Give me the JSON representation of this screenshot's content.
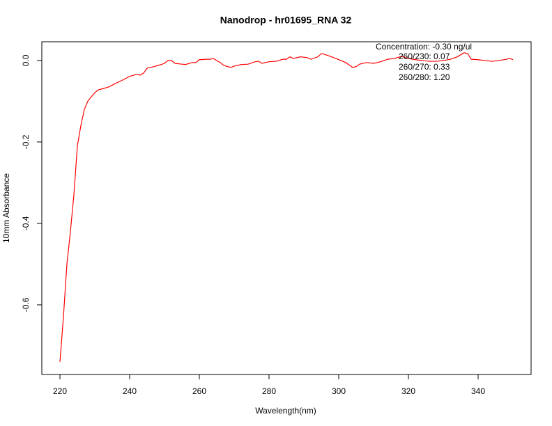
{
  "chart_data": {
    "type": "line",
    "title": "Nanodrop - hr01695_RNA 32",
    "xlabel": "Wavelength(nm)",
    "ylabel": "10mm Absorbance",
    "annotations": [
      "Concentration: -0.30 ng/ul",
      "260/230: 0.07",
      "260/270: 0.33",
      "260/280: 1.20"
    ],
    "color": "#ff0000",
    "grid": false,
    "xlim": [
      214.8,
      355.2
    ],
    "xticks": [
      220,
      240,
      260,
      280,
      300,
      320,
      340
    ],
    "ylim": [
      -0.771,
      0.046
    ],
    "yticks": [
      {
        "value": 0,
        "label": "0.0"
      },
      -0.2,
      -0.4,
      -0.6
    ],
    "x": [
      220,
      221,
      222,
      223,
      224,
      225,
      226,
      227,
      228,
      229,
      230,
      231,
      232,
      234,
      236,
      238,
      240,
      242,
      243,
      244,
      245,
      247,
      249,
      250,
      251,
      252,
      253,
      255,
      256,
      258,
      259,
      260,
      262,
      263,
      264,
      266,
      267,
      269,
      270,
      272,
      274,
      276,
      277,
      278,
      280,
      282,
      284,
      285,
      286,
      287,
      289,
      291,
      292,
      294,
      295,
      296,
      298,
      300,
      302,
      304,
      305,
      306,
      308,
      310,
      312,
      314,
      316,
      318,
      320,
      322,
      324,
      326,
      328,
      330,
      332,
      334,
      336,
      337,
      338,
      340,
      342,
      344,
      346,
      348,
      349,
      350
    ],
    "values": [
      -0.74,
      -0.63,
      -0.5,
      -0.42,
      -0.33,
      -0.21,
      -0.16,
      -0.12,
      -0.1,
      -0.089,
      -0.079,
      -0.072,
      -0.07,
      -0.065,
      -0.056,
      -0.048,
      -0.039,
      -0.034,
      -0.036,
      -0.031,
      -0.019,
      -0.015,
      -0.01,
      -0.007,
      0.0,
      0.0,
      -0.007,
      -0.009,
      -0.01,
      -0.005,
      -0.005,
      0.002,
      0.003,
      0.003,
      0.005,
      -0.005,
      -0.012,
      -0.017,
      -0.014,
      -0.01,
      -0.009,
      -0.003,
      -0.002,
      -0.007,
      -0.003,
      -0.002,
      0.003,
      0.003,
      0.009,
      0.005,
      0.009,
      0.007,
      0.003,
      0.009,
      0.017,
      0.015,
      0.009,
      0.002,
      -0.005,
      -0.017,
      -0.015,
      -0.009,
      -0.005,
      -0.007,
      -0.003,
      0.003,
      0.005,
      0.01,
      0.005,
      0.002,
      0.0,
      -0.002,
      -0.002,
      0.0,
      0.003,
      0.009,
      0.019,
      0.017,
      0.003,
      0.002,
      0.0,
      -0.002,
      0.0,
      0.003,
      0.005,
      0.002
    ]
  }
}
